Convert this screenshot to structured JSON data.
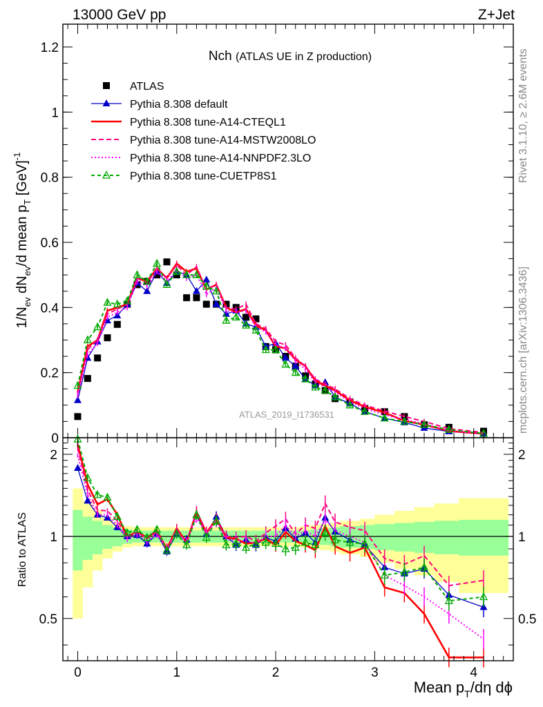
{
  "header": {
    "left": "13000 GeV pp",
    "right": "Z+Jet"
  },
  "side_text": {
    "rivet": "Rivet 3.1.10, ≥ 2.6M events",
    "mcplots": "mcplots.cern.ch [arXiv:1306.3436]"
  },
  "analysis_id": "ATLAS_2019_I1736531",
  "chart_data": [
    {
      "type": "line",
      "panel": "main",
      "title_main": "Nch",
      "title_sub": "(ATLAS UE in Z production)",
      "ylabel": "1/N_ev dN_ev/d mean p_T [GeV]^-1",
      "ylim": [
        0,
        1.27
      ],
      "xlim": [
        -0.15,
        4.4
      ],
      "y_ticks": [
        "0",
        "0.2",
        "0.4",
        "0.6",
        "0.8",
        "1",
        "1.2"
      ],
      "x_ticks": [
        "0",
        "1",
        "2",
        "3",
        "4"
      ],
      "x": [
        0,
        0.1,
        0.2,
        0.3,
        0.4,
        0.5,
        0.6,
        0.7,
        0.8,
        0.9,
        1.0,
        1.1,
        1.2,
        1.3,
        1.4,
        1.5,
        1.6,
        1.7,
        1.8,
        1.9,
        2.0,
        2.1,
        2.2,
        2.3,
        2.4,
        2.5,
        2.6,
        2.75,
        2.9,
        3.1,
        3.3,
        3.5,
        3.75,
        4.1
      ],
      "series": [
        {
          "name": "ATLAS",
          "color": "#000000",
          "marker": "square",
          "values": [
            0.065,
            0.182,
            0.245,
            0.307,
            0.348,
            0.41,
            0.47,
            0.48,
            0.5,
            0.54,
            0.5,
            0.43,
            0.43,
            0.41,
            0.41,
            0.41,
            0.4,
            0.37,
            0.365,
            0.28,
            0.27,
            0.25,
            0.22,
            0.19,
            0.165,
            0.145,
            0.12,
            0.11,
            0.09,
            0.08,
            0.065,
            0.04,
            0.032,
            0.02
          ]
        },
        {
          "name": "Pythia 8.308 default",
          "color": "#0000c8",
          "marker": "triangle",
          "values": [
            0.115,
            0.245,
            0.295,
            0.36,
            0.375,
            0.41,
            0.475,
            0.45,
            0.51,
            0.475,
            0.51,
            0.5,
            0.45,
            0.485,
            0.41,
            0.38,
            0.39,
            0.35,
            0.34,
            0.28,
            0.29,
            0.245,
            0.22,
            0.18,
            0.16,
            0.17,
            0.125,
            0.105,
            0.08,
            0.06,
            0.047,
            0.03,
            0.019,
            0.011
          ]
        },
        {
          "name": "Pythia 8.308 tune-A14-CTEQL1",
          "color": "#ff0000",
          "marker": "none",
          "values": [
            0.14,
            0.28,
            0.3,
            0.39,
            0.4,
            0.41,
            0.49,
            0.48,
            0.52,
            0.49,
            0.535,
            0.51,
            0.52,
            0.455,
            0.47,
            0.4,
            0.385,
            0.395,
            0.345,
            0.33,
            0.28,
            0.275,
            0.24,
            0.22,
            0.175,
            0.16,
            0.145,
            0.115,
            0.095,
            0.077,
            0.052,
            0.04,
            0.021,
            0.012
          ]
        },
        {
          "name": "Pythia 8.308 tune-A14-MSTW2008LO",
          "color": "#ff0080",
          "marker": "none",
          "values": [
            0.135,
            0.27,
            0.3,
            0.38,
            0.395,
            0.41,
            0.49,
            0.475,
            0.52,
            0.49,
            0.53,
            0.5,
            0.525,
            0.455,
            0.47,
            0.4,
            0.395,
            0.41,
            0.35,
            0.335,
            0.295,
            0.285,
            0.245,
            0.22,
            0.18,
            0.165,
            0.15,
            0.12,
            0.1,
            0.082,
            0.065,
            0.05,
            0.028,
            0.016
          ]
        },
        {
          "name": "Pythia 8.308 tune-A14-NNPDF2.3LO",
          "color": "#ff00ff",
          "marker": "none",
          "values": [
            0.13,
            0.255,
            0.29,
            0.37,
            0.385,
            0.4,
            0.48,
            0.465,
            0.51,
            0.48,
            0.515,
            0.49,
            0.5,
            0.44,
            0.46,
            0.39,
            0.385,
            0.39,
            0.34,
            0.325,
            0.285,
            0.275,
            0.235,
            0.21,
            0.17,
            0.155,
            0.14,
            0.11,
            0.09,
            0.07,
            0.057,
            0.042,
            0.022,
            0.012
          ]
        },
        {
          "name": "Pythia 8.308 tune-CUETP8S1",
          "color": "#00aa00",
          "marker": "triangle-open",
          "values": [
            0.16,
            0.3,
            0.34,
            0.415,
            0.41,
            0.42,
            0.5,
            0.48,
            0.535,
            0.47,
            0.51,
            0.5,
            0.5,
            0.465,
            0.45,
            0.36,
            0.37,
            0.345,
            0.33,
            0.27,
            0.27,
            0.225,
            0.2,
            0.18,
            0.155,
            0.145,
            0.125,
            0.1,
            0.08,
            0.06,
            0.05,
            0.04,
            0.025,
            0.013
          ]
        }
      ]
    },
    {
      "type": "line",
      "panel": "ratio",
      "ylabel": "Ratio to ATLAS",
      "xlabel": "Mean p_T/dη dφ",
      "ylim": [
        0.35,
        2.3
      ],
      "xlim": [
        -0.15,
        4.4
      ],
      "y_ticks": [
        "0.5",
        "1",
        "2"
      ],
      "x_ticks": [
        "0",
        "1",
        "2",
        "3",
        "4"
      ],
      "x": [
        0,
        0.1,
        0.2,
        0.3,
        0.4,
        0.5,
        0.6,
        0.7,
        0.8,
        0.9,
        1.0,
        1.1,
        1.2,
        1.3,
        1.4,
        1.5,
        1.6,
        1.7,
        1.8,
        1.9,
        2.0,
        2.1,
        2.2,
        2.3,
        2.4,
        2.5,
        2.6,
        2.75,
        2.9,
        3.1,
        3.3,
        3.5,
        3.75,
        4.1
      ],
      "band_edges": [
        -0.05,
        0.05,
        0.15,
        0.25,
        0.35,
        0.45,
        0.55,
        0.65,
        0.75,
        0.85,
        0.95,
        1.05,
        1.15,
        1.25,
        1.35,
        1.45,
        1.55,
        1.65,
        1.75,
        1.85,
        1.95,
        2.05,
        2.15,
        2.25,
        2.35,
        2.45,
        2.55,
        2.65,
        2.85,
        3.0,
        3.2,
        3.4,
        3.6,
        3.85,
        4.35
      ],
      "band_green": [
        0.25,
        0.18,
        0.14,
        0.1,
        0.08,
        0.06,
        0.05,
        0.05,
        0.05,
        0.05,
        0.05,
        0.05,
        0.05,
        0.05,
        0.05,
        0.05,
        0.05,
        0.05,
        0.05,
        0.05,
        0.05,
        0.05,
        0.05,
        0.05,
        0.06,
        0.07,
        0.08,
        0.09,
        0.1,
        0.11,
        0.12,
        0.13,
        0.14,
        0.15
      ],
      "band_yellow": [
        0.5,
        0.35,
        0.25,
        0.17,
        0.12,
        0.09,
        0.08,
        0.08,
        0.08,
        0.08,
        0.08,
        0.08,
        0.08,
        0.08,
        0.08,
        0.08,
        0.08,
        0.08,
        0.08,
        0.08,
        0.08,
        0.08,
        0.08,
        0.09,
        0.1,
        0.11,
        0.12,
        0.14,
        0.16,
        0.2,
        0.24,
        0.28,
        0.32,
        0.38
      ],
      "series": [
        {
          "name": "Pythia 8.308 default",
          "color": "#0000c8",
          "marker": "triangle",
          "values": [
            1.78,
            1.35,
            1.2,
            1.17,
            1.08,
            1.0,
            1.01,
            0.94,
            1.02,
            0.88,
            1.02,
            0.97,
            1.2,
            1.02,
            1.18,
            1.0,
            0.93,
            0.97,
            0.93,
            0.99,
            0.96,
            1.07,
            0.98,
            1.03,
            0.95,
            1.17,
            1.04,
            0.97,
            0.93,
            0.77,
            0.73,
            0.76,
            0.61,
            0.55
          ]
        },
        {
          "name": "Pythia 8.308 tune-A14-CTEQL1",
          "color": "#ff0000",
          "marker": "none",
          "values": [
            2.17,
            1.55,
            1.31,
            1.37,
            1.2,
            1.0,
            1.04,
            0.99,
            1.05,
            0.9,
            1.07,
            0.95,
            1.23,
            1.03,
            1.16,
            0.99,
            0.98,
            0.94,
            0.95,
            0.98,
            0.93,
            1.04,
            0.96,
            0.93,
            0.89,
            1.09,
            0.92,
            0.87,
            0.91,
            0.65,
            0.62,
            0.52,
            0.36,
            0.36
          ]
        },
        {
          "name": "Pythia 8.308 tune-A14-MSTW2008LO",
          "color": "#ff0080",
          "marker": "none",
          "values": [
            2.1,
            1.48,
            1.25,
            1.24,
            1.14,
            1.0,
            1.04,
            0.98,
            1.04,
            0.91,
            1.06,
            0.95,
            1.24,
            1.04,
            1.15,
            1.0,
            0.99,
            1.0,
            0.96,
            1.03,
            1.09,
            1.16,
            1.02,
            1.1,
            1.07,
            1.32,
            1.13,
            1.08,
            1.05,
            0.83,
            0.79,
            0.85,
            0.66,
            0.69
          ]
        },
        {
          "name": "Pythia 8.308 tune-A14-NNPDF2.3LO",
          "color": "#ff00ff",
          "marker": "none",
          "values": [
            1.98,
            1.42,
            1.2,
            1.2,
            1.1,
            0.98,
            1.02,
            0.96,
            1.02,
            0.89,
            1.03,
            0.95,
            1.17,
            1.02,
            1.13,
            0.97,
            0.97,
            0.96,
            0.94,
            1.0,
            1.0,
            1.1,
            1.0,
            1.05,
            1.0,
            1.15,
            1.05,
            1.0,
            0.95,
            0.72,
            0.66,
            0.6,
            0.52,
            0.42
          ]
        },
        {
          "name": "Pythia 8.308 tune-CUETP8S1",
          "color": "#00aa00",
          "marker": "triangle-open",
          "values": [
            2.27,
            1.64,
            1.42,
            1.39,
            1.18,
            1.03,
            1.06,
            0.99,
            1.06,
            0.89,
            1.02,
            0.93,
            1.2,
            0.99,
            1.14,
            0.93,
            0.94,
            0.91,
            0.94,
            0.95,
            0.94,
            0.9,
            0.91,
            0.95,
            0.93,
            1.03,
            0.97,
            0.95,
            0.94,
            0.72,
            0.74,
            0.77,
            0.58,
            0.6
          ]
        }
      ]
    }
  ]
}
